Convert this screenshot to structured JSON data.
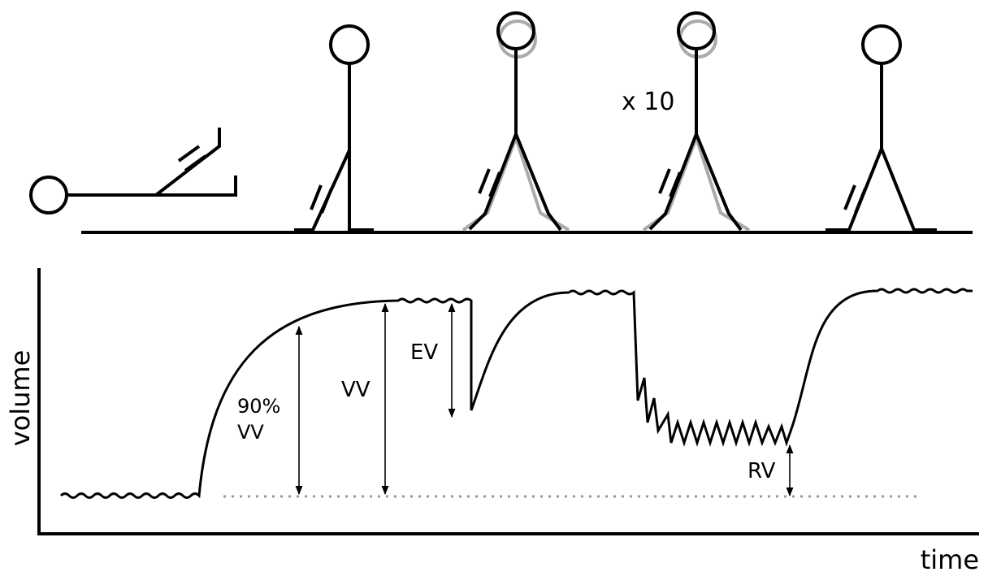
{
  "figures": {
    "repetitions": "x 10"
  },
  "axes": {
    "y_label": "volume",
    "x_label": "time"
  },
  "annotations": [
    {
      "lines": [
        "90%",
        "VV"
      ]
    },
    {
      "lines": [
        "VV"
      ]
    },
    {
      "lines": [
        "EV"
      ]
    },
    {
      "lines": [
        "RV"
      ]
    }
  ]
}
